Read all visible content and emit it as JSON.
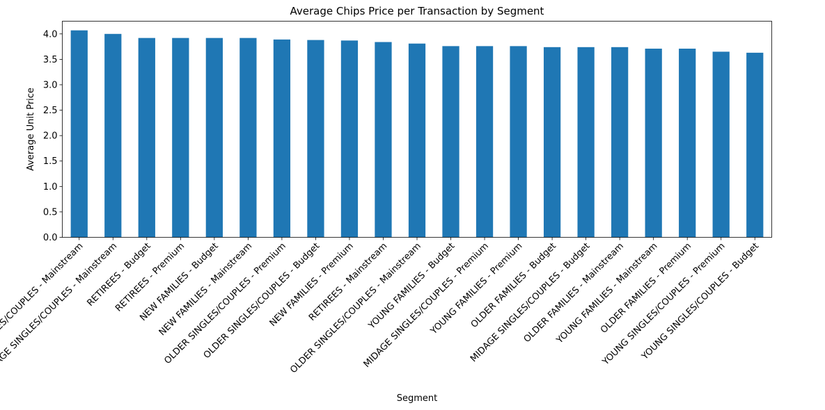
{
  "chart_data": {
    "type": "bar",
    "title": "Average Chips Price per Transaction by Segment",
    "xlabel": "Segment",
    "ylabel": "Average Unit Price",
    "ylim": [
      0,
      4.25
    ],
    "yticks": [
      0.0,
      0.5,
      1.0,
      1.5,
      2.0,
      2.5,
      3.0,
      3.5,
      4.0
    ],
    "ytick_labels": [
      "0.0",
      "0.5",
      "1.0",
      "1.5",
      "2.0",
      "2.5",
      "3.0",
      "3.5",
      "4.0"
    ],
    "grid": false,
    "legend": "none",
    "bar_color": "#1f77b4",
    "categories": [
      "YOUNG SINGLES/COUPLES - Mainstream",
      "MIDAGE SINGLES/COUPLES - Mainstream",
      "RETIREES - Budget",
      "RETIREES - Premium",
      "NEW FAMILIES - Budget",
      "NEW FAMILIES - Mainstream",
      "OLDER SINGLES/COUPLES - Premium",
      "OLDER SINGLES/COUPLES - Budget",
      "NEW FAMILIES - Premium",
      "RETIREES - Mainstream",
      "OLDER SINGLES/COUPLES - Mainstream",
      "YOUNG FAMILIES - Budget",
      "MIDAGE SINGLES/COUPLES - Premium",
      "YOUNG FAMILIES - Premium",
      "OLDER FAMILIES - Budget",
      "MIDAGE SINGLES/COUPLES - Budget",
      "OLDER FAMILIES - Mainstream",
      "YOUNG FAMILIES - Mainstream",
      "OLDER FAMILIES - Premium",
      "YOUNG SINGLES/COUPLES - Premium",
      "YOUNG SINGLES/COUPLES - Budget"
    ],
    "values": [
      4.07,
      4.0,
      3.92,
      3.92,
      3.92,
      3.92,
      3.89,
      3.88,
      3.87,
      3.84,
      3.81,
      3.76,
      3.76,
      3.76,
      3.74,
      3.74,
      3.74,
      3.71,
      3.71,
      3.65,
      3.63
    ]
  }
}
